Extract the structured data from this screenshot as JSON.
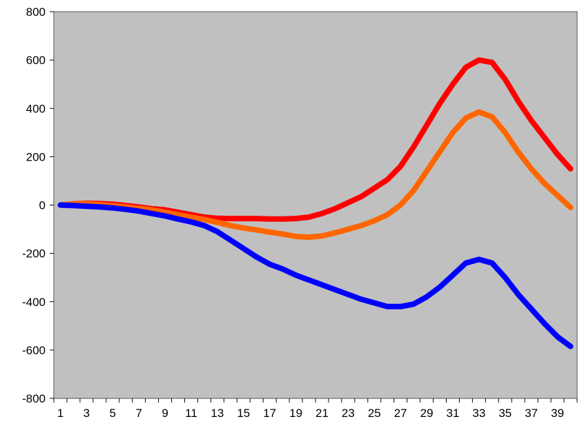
{
  "chart_data": {
    "type": "line",
    "title": "",
    "xlabel": "",
    "ylabel": "",
    "x": [
      1,
      2,
      3,
      4,
      5,
      6,
      7,
      8,
      9,
      10,
      11,
      12,
      13,
      14,
      15,
      16,
      17,
      18,
      19,
      20,
      21,
      22,
      23,
      24,
      25,
      26,
      27,
      28,
      29,
      30,
      31,
      32,
      33,
      34,
      35,
      36,
      37,
      38,
      39,
      40
    ],
    "x_tick_labels": [
      "1",
      "3",
      "5",
      "7",
      "9",
      "11",
      "13",
      "15",
      "17",
      "19",
      "21",
      "23",
      "25",
      "27",
      "29",
      "31",
      "33",
      "35",
      "37",
      "39"
    ],
    "ylim": [
      -800,
      800
    ],
    "y_ticks": [
      -800,
      -600,
      -400,
      -200,
      0,
      200,
      400,
      600,
      800
    ],
    "y_tick_labels": [
      "-800",
      "-600",
      "-400",
      "-200",
      "0",
      "200",
      "400",
      "600",
      "800"
    ],
    "grid": false,
    "legend": "none",
    "plot_background": "#C0C0C0",
    "series": [
      {
        "color": "#FF0000",
        "values": [
          0,
          5,
          7,
          6,
          3,
          -2,
          -8,
          -15,
          -20,
          -30,
          -40,
          -50,
          -55,
          -56,
          -56,
          -56,
          -58,
          -58,
          -56,
          -50,
          -35,
          -15,
          10,
          35,
          70,
          105,
          160,
          240,
          330,
          420,
          500,
          570,
          600,
          590,
          520,
          430,
          350,
          280,
          210,
          150
        ]
      },
      {
        "color": "#FF6600",
        "values": [
          0,
          4,
          5,
          2,
          -3,
          -8,
          -14,
          -20,
          -30,
          -40,
          -50,
          -60,
          -72,
          -85,
          -95,
          -103,
          -112,
          -120,
          -130,
          -133,
          -128,
          -115,
          -100,
          -85,
          -65,
          -40,
          0,
          60,
          140,
          220,
          300,
          360,
          385,
          365,
          300,
          220,
          150,
          90,
          40,
          -10
        ]
      },
      {
        "color": "#0000FF",
        "values": [
          0,
          -2,
          -5,
          -8,
          -12,
          -18,
          -25,
          -35,
          -45,
          -58,
          -70,
          -85,
          -110,
          -145,
          -180,
          -215,
          -245,
          -265,
          -290,
          -310,
          -330,
          -350,
          -370,
          -390,
          -405,
          -420,
          -420,
          -410,
          -380,
          -340,
          -290,
          -240,
          -225,
          -240,
          -300,
          -370,
          -430,
          -490,
          -545,
          -585
        ]
      }
    ]
  }
}
